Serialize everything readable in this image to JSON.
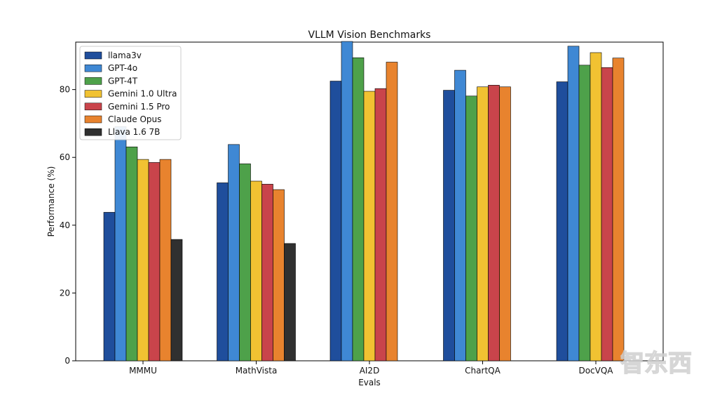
{
  "chart_data": {
    "type": "bar",
    "title": "VLLM Vision Benchmarks",
    "xlabel": "Evals",
    "ylabel": "Performance (%)",
    "categories": [
      "MMMU",
      "MathVista",
      "AI2D",
      "ChartQA",
      "DocVQA"
    ],
    "ylim": [
      0,
      94
    ],
    "yticks": [
      0,
      20,
      40,
      60,
      80
    ],
    "grid": false,
    "legend_position": "top-left",
    "series": [
      {
        "name": "llama3v",
        "color": "#1f4e9c",
        "values": [
          43.8,
          52.5,
          82.5,
          79.8,
          82.3
        ]
      },
      {
        "name": "GPT-4o",
        "color": "#3f88d4",
        "values": [
          69.1,
          63.8,
          94.2,
          85.7,
          92.8
        ]
      },
      {
        "name": "GPT-4T",
        "color": "#4ea14a",
        "values": [
          63.1,
          58.1,
          89.4,
          78.1,
          87.2
        ]
      },
      {
        "name": "Gemini 1.0 Ultra",
        "color": "#f1c232",
        "values": [
          59.4,
          53.0,
          79.5,
          80.8,
          90.9
        ]
      },
      {
        "name": "Gemini 1.5 Pro",
        "color": "#c9444b",
        "values": [
          58.5,
          52.1,
          80.3,
          81.3,
          86.5
        ]
      },
      {
        "name": "Claude Opus",
        "color": "#e8832e",
        "values": [
          59.4,
          50.5,
          88.1,
          80.8,
          89.3
        ]
      },
      {
        "name": "Llava 1.6 7B",
        "color": "#303030",
        "values": [
          35.8,
          34.6,
          null,
          null,
          null
        ]
      }
    ]
  },
  "watermark": {
    "text": "智东西"
  }
}
